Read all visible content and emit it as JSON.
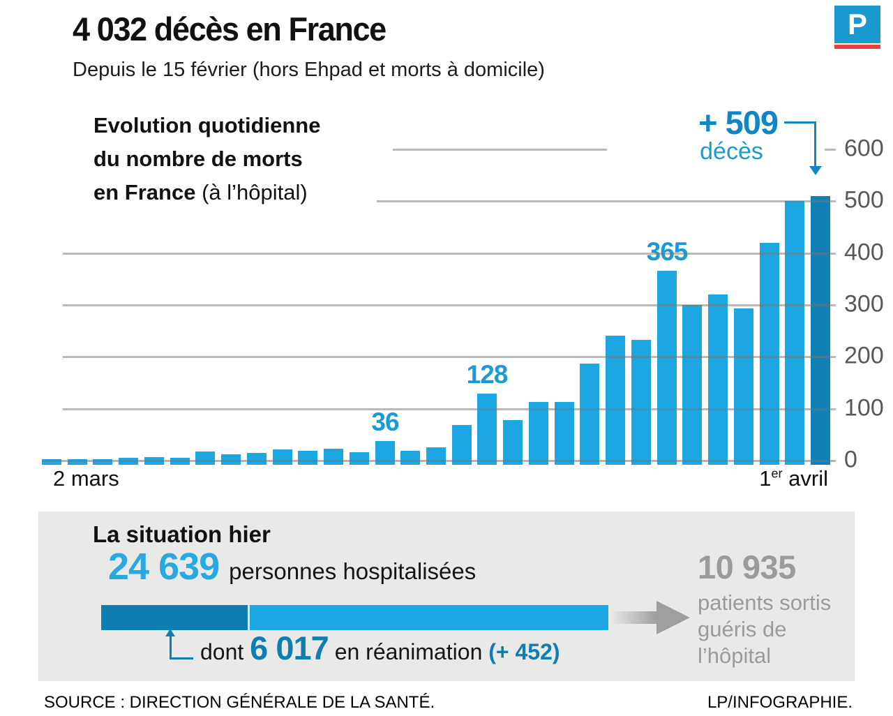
{
  "brand": {
    "logo_letter": "P",
    "logo_bg": "#1b9ad2",
    "logo_stripe": "#e8423c"
  },
  "header": {
    "title": "4 032 décès en France",
    "subtitle": "Depuis le 15 février (hors Ehpad et morts à domicile)"
  },
  "chart": {
    "title_line1": "Evolution quotidienne",
    "title_line2": "du nombre de morts",
    "title_line3_bold": "en France",
    "title_line3_normal": " (à l’hôpital)",
    "x_start_label": "2 mars",
    "x_end_number": "1",
    "x_end_sup": "er",
    "x_end_rest": " avril",
    "annotation": {
      "value": "+ 509",
      "unit": "décès"
    }
  },
  "chart_data": {
    "type": "bar",
    "title": "Evolution quotidienne du nombre de morts en France (à l’hôpital)",
    "x_start": "2 mars",
    "x_end": "1er avril",
    "values": [
      1,
      2,
      1,
      4,
      5,
      4,
      16,
      11,
      13,
      20,
      17,
      21,
      15,
      36,
      17,
      24,
      67,
      128,
      77,
      112,
      112,
      186,
      240,
      231,
      365,
      299,
      319,
      292,
      418,
      499,
      509
    ],
    "callouts": [
      {
        "index": 13,
        "label": "36"
      },
      {
        "index": 17,
        "label": "128"
      },
      {
        "index": 24,
        "label": "365"
      },
      {
        "index": 30,
        "label": "+ 509 décès",
        "highlighted": true
      }
    ],
    "y_ticks": [
      600,
      500,
      400,
      300,
      200,
      100,
      0
    ],
    "ylim": [
      0,
      600
    ],
    "grid": true,
    "colors": {
      "bar": "#1ca7e2",
      "bar_highlight": "#1080b6",
      "gridline": "#bbbbbb",
      "callout_text": "#1b9ad6"
    }
  },
  "situation": {
    "heading": "La situation hier",
    "hospitalized_value": "24 639",
    "hospitalized_label": "personnes hospitalisées",
    "icu_prefix": "dont ",
    "icu_value": "6 017",
    "icu_label": " en réanimation ",
    "icu_delta": "(+ 452)",
    "recovered_value": "10 935",
    "recovered_line1": "patients sortis",
    "recovered_line2": "guéris de l’hôpital"
  },
  "footer": {
    "source": "SOURCE : DIRECTION GÉNÉRALE DE LA SANTÉ.",
    "credit": "LP/INFOGRAPHIE."
  }
}
